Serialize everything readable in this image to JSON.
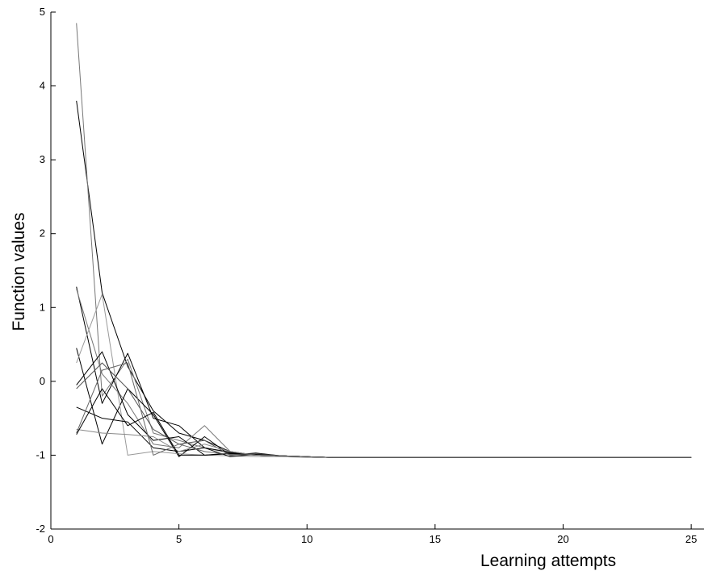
{
  "chart_data": {
    "type": "line",
    "title": "",
    "xlabel": "Learning attempts",
    "ylabel": "Function values",
    "xlim": [
      0,
      25.5
    ],
    "ylim": [
      -2,
      5
    ],
    "xticks": [
      0,
      5,
      10,
      15,
      20,
      25
    ],
    "xtick_labels": [
      "0",
      "5",
      "10",
      "15",
      "20",
      "25"
    ],
    "yticks": [
      -2,
      -1,
      0,
      1,
      2,
      3,
      4,
      5
    ],
    "ytick_labels": [
      "-2",
      "-1",
      "0",
      "1",
      "2",
      "3",
      "4",
      "5"
    ],
    "grid": false,
    "legend": "none",
    "x": [
      1,
      2,
      3,
      4,
      5,
      6,
      7,
      8,
      9,
      10,
      11,
      12,
      13,
      14,
      15,
      16,
      17,
      18,
      19,
      20,
      21,
      22,
      23,
      24,
      25,
      26
    ],
    "series": [
      {
        "color": "#000000",
        "values": [
          3.8,
          1.2,
          0.2,
          -0.4,
          -0.7,
          -0.8,
          -0.95,
          -1.0,
          -1.01,
          -1.02,
          -1.03,
          -1.03,
          -1.03,
          -1.03,
          -1.03,
          -1.03,
          -1.03,
          -1.03,
          -1.03,
          -1.03,
          -1.03,
          -1.03,
          -1.03,
          -1.03,
          -1.03,
          -1.03
        ]
      },
      {
        "color": "#777777",
        "values": [
          4.85,
          -0.2,
          0.3,
          -0.7,
          -0.8,
          -0.9,
          -0.97,
          -1.0,
          -1.01,
          -1.02,
          -1.03,
          -1.03,
          -1.03,
          -1.03,
          -1.03,
          -1.03,
          -1.03,
          -1.03,
          -1.03,
          -1.03,
          -1.03,
          -1.03,
          -1.03,
          -1.03,
          -1.03,
          -1.03
        ]
      },
      {
        "color": "#000000",
        "values": [
          1.28,
          -0.3,
          0.38,
          -0.5,
          -0.6,
          -0.9,
          -0.96,
          -1.0,
          -1.01,
          -1.02,
          -1.03,
          -1.03,
          -1.03,
          -1.03,
          -1.03,
          -1.03,
          -1.03,
          -1.03,
          -1.03,
          -1.03,
          -1.03,
          -1.03,
          -1.03,
          -1.03,
          -1.03,
          -1.03
        ]
      },
      {
        "color": "#777777",
        "values": [
          1.25,
          0.1,
          -0.3,
          -0.85,
          -0.9,
          -0.6,
          -0.95,
          -1.0,
          -1.01,
          -1.02,
          -1.03,
          -1.03,
          -1.03,
          -1.03,
          -1.03,
          -1.03,
          -1.03,
          -1.03,
          -1.03,
          -1.03,
          -1.03,
          -1.03,
          -1.03,
          -1.03,
          -1.03,
          -1.03
        ]
      },
      {
        "color": "#000000",
        "values": [
          0.45,
          -0.85,
          -0.1,
          -0.45,
          -1.02,
          -0.75,
          -1.0,
          -0.97,
          -1.01,
          -1.02,
          -1.03,
          -1.03,
          -1.03,
          -1.03,
          -1.03,
          -1.03,
          -1.03,
          -1.03,
          -1.03,
          -1.03,
          -1.03,
          -1.03,
          -1.03,
          -1.03,
          -1.03,
          -1.03
        ]
      },
      {
        "color": "#999999",
        "values": [
          0.25,
          1.18,
          -1.0,
          -0.95,
          -0.98,
          -1.0,
          -1.01,
          -1.02,
          -1.02,
          -1.03,
          -1.03,
          -1.03,
          -1.03,
          -1.03,
          -1.03,
          -1.03,
          -1.03,
          -1.03,
          -1.03,
          -1.03,
          -1.03,
          -1.03,
          -1.03,
          -1.03,
          -1.03,
          -1.03
        ]
      },
      {
        "color": "#000000",
        "values": [
          -0.05,
          0.4,
          -0.45,
          -0.8,
          -0.75,
          -1.0,
          -0.97,
          -1.0,
          -1.01,
          -1.02,
          -1.03,
          -1.03,
          -1.03,
          -1.03,
          -1.03,
          -1.03,
          -1.03,
          -1.03,
          -1.03,
          -1.03,
          -1.03,
          -1.03,
          -1.03,
          -1.03,
          -1.03,
          -1.03
        ]
      },
      {
        "color": "#555555",
        "values": [
          -0.1,
          0.25,
          -0.1,
          -0.65,
          -0.85,
          -0.8,
          -1.0,
          -0.98,
          -1.01,
          -1.02,
          -1.03,
          -1.03,
          -1.03,
          -1.03,
          -1.03,
          -1.03,
          -1.03,
          -1.03,
          -1.03,
          -1.03,
          -1.03,
          -1.03,
          -1.03,
          -1.03,
          -1.03,
          -1.03
        ]
      },
      {
        "color": "#000000",
        "values": [
          -0.35,
          -0.5,
          -0.55,
          -0.9,
          -0.95,
          -0.9,
          -1.02,
          -0.99,
          -1.01,
          -1.02,
          -1.03,
          -1.03,
          -1.03,
          -1.03,
          -1.03,
          -1.03,
          -1.03,
          -1.03,
          -1.03,
          -1.03,
          -1.03,
          -1.03,
          -1.03,
          -1.03,
          -1.03,
          -1.03
        ]
      },
      {
        "color": "#888888",
        "values": [
          -0.65,
          -0.7,
          -0.72,
          -0.75,
          -0.95,
          -0.85,
          -0.95,
          -1.0,
          -1.01,
          -1.02,
          -1.03,
          -1.03,
          -1.03,
          -1.03,
          -1.03,
          -1.03,
          -1.03,
          -1.03,
          -1.03,
          -1.03,
          -1.03,
          -1.03,
          -1.03,
          -1.03,
          -1.03,
          -1.03
        ]
      },
      {
        "color": "#000000",
        "values": [
          -0.72,
          -0.1,
          -0.6,
          -0.42,
          -1.0,
          -1.0,
          -0.98,
          -1.0,
          -1.01,
          -1.02,
          -1.03,
          -1.03,
          -1.03,
          -1.03,
          -1.03,
          -1.03,
          -1.03,
          -1.03,
          -1.03,
          -1.03,
          -1.03,
          -1.03,
          -1.03,
          -1.03,
          -1.03,
          -1.03
        ]
      },
      {
        "color": "#666666",
        "values": [
          -0.7,
          0.15,
          0.25,
          -1.0,
          -0.85,
          -0.95,
          -0.99,
          -1.0,
          -1.01,
          -1.02,
          -1.03,
          -1.03,
          -1.03,
          -1.03,
          -1.03,
          -1.03,
          -1.03,
          -1.03,
          -1.03,
          -1.03,
          -1.03,
          -1.03,
          -1.03,
          -1.03,
          -1.03,
          -1.03
        ]
      }
    ]
  }
}
